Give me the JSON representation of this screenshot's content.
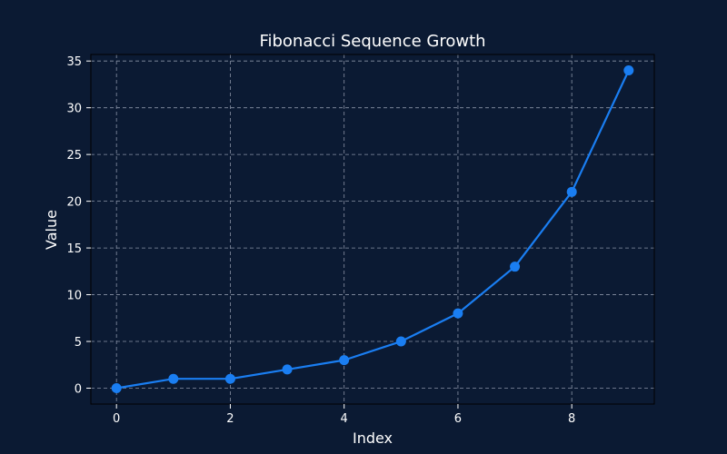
{
  "chart_data": {
    "type": "line",
    "title": "Fibonacci Sequence Growth",
    "xlabel": "Index",
    "ylabel": "Value",
    "x": [
      0,
      1,
      2,
      3,
      4,
      5,
      6,
      7,
      8,
      9
    ],
    "series": [
      {
        "values": [
          0,
          1,
          1,
          2,
          3,
          5,
          8,
          13,
          21,
          34
        ]
      }
    ],
    "xlim": [
      -0.45,
      9.45
    ],
    "ylim": [
      -1.7,
      35.7
    ],
    "xticks": [
      0,
      2,
      4,
      6,
      8
    ],
    "yticks": [
      0,
      5,
      10,
      15,
      20,
      25,
      30,
      35
    ],
    "grid": true,
    "markers": true,
    "legend": "none",
    "colors": {
      "background": "#0b1a33",
      "line": "#1a7ef2",
      "marker": "#1a7ef2",
      "text": "#ffffff",
      "grid": "#8a93a6"
    }
  }
}
